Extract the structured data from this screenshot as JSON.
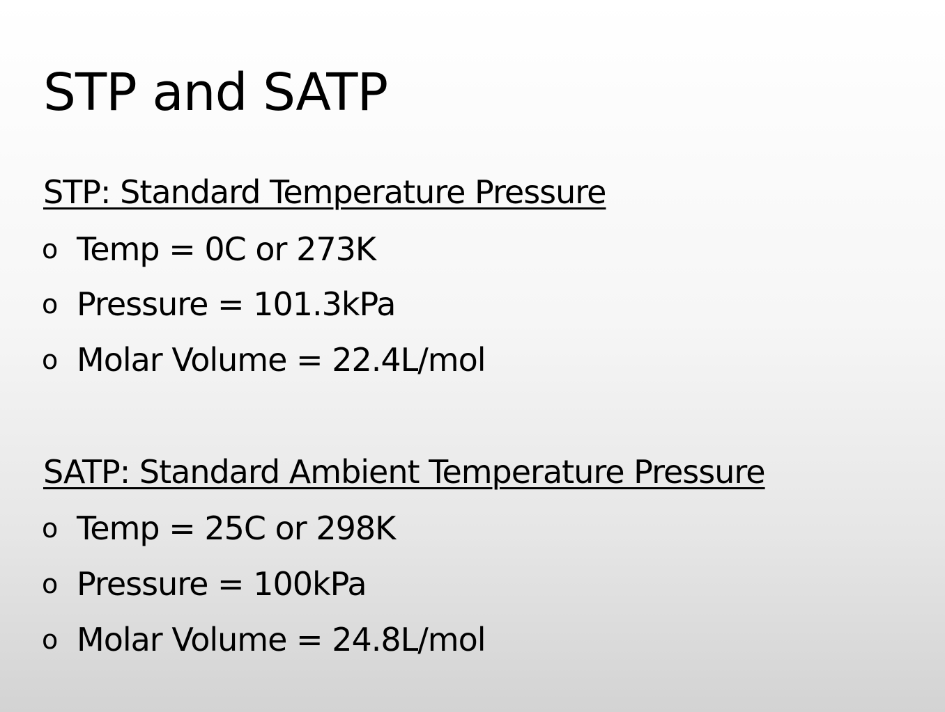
{
  "title": "STP and SATP",
  "bullet_marker": "o",
  "stp": {
    "heading": "STP: Standard Temperature Pressure",
    "items": [
      "Temp = 0C or 273K",
      "Pressure = 101.3kPa",
      "Molar Volume = 22.4L/mol"
    ]
  },
  "satp": {
    "heading": "SATP: Standard Ambient Temperature Pressure",
    "items": [
      "Temp = 25C or 298K",
      "Pressure = 100kPa",
      "Molar Volume = 24.8L/mol"
    ]
  }
}
